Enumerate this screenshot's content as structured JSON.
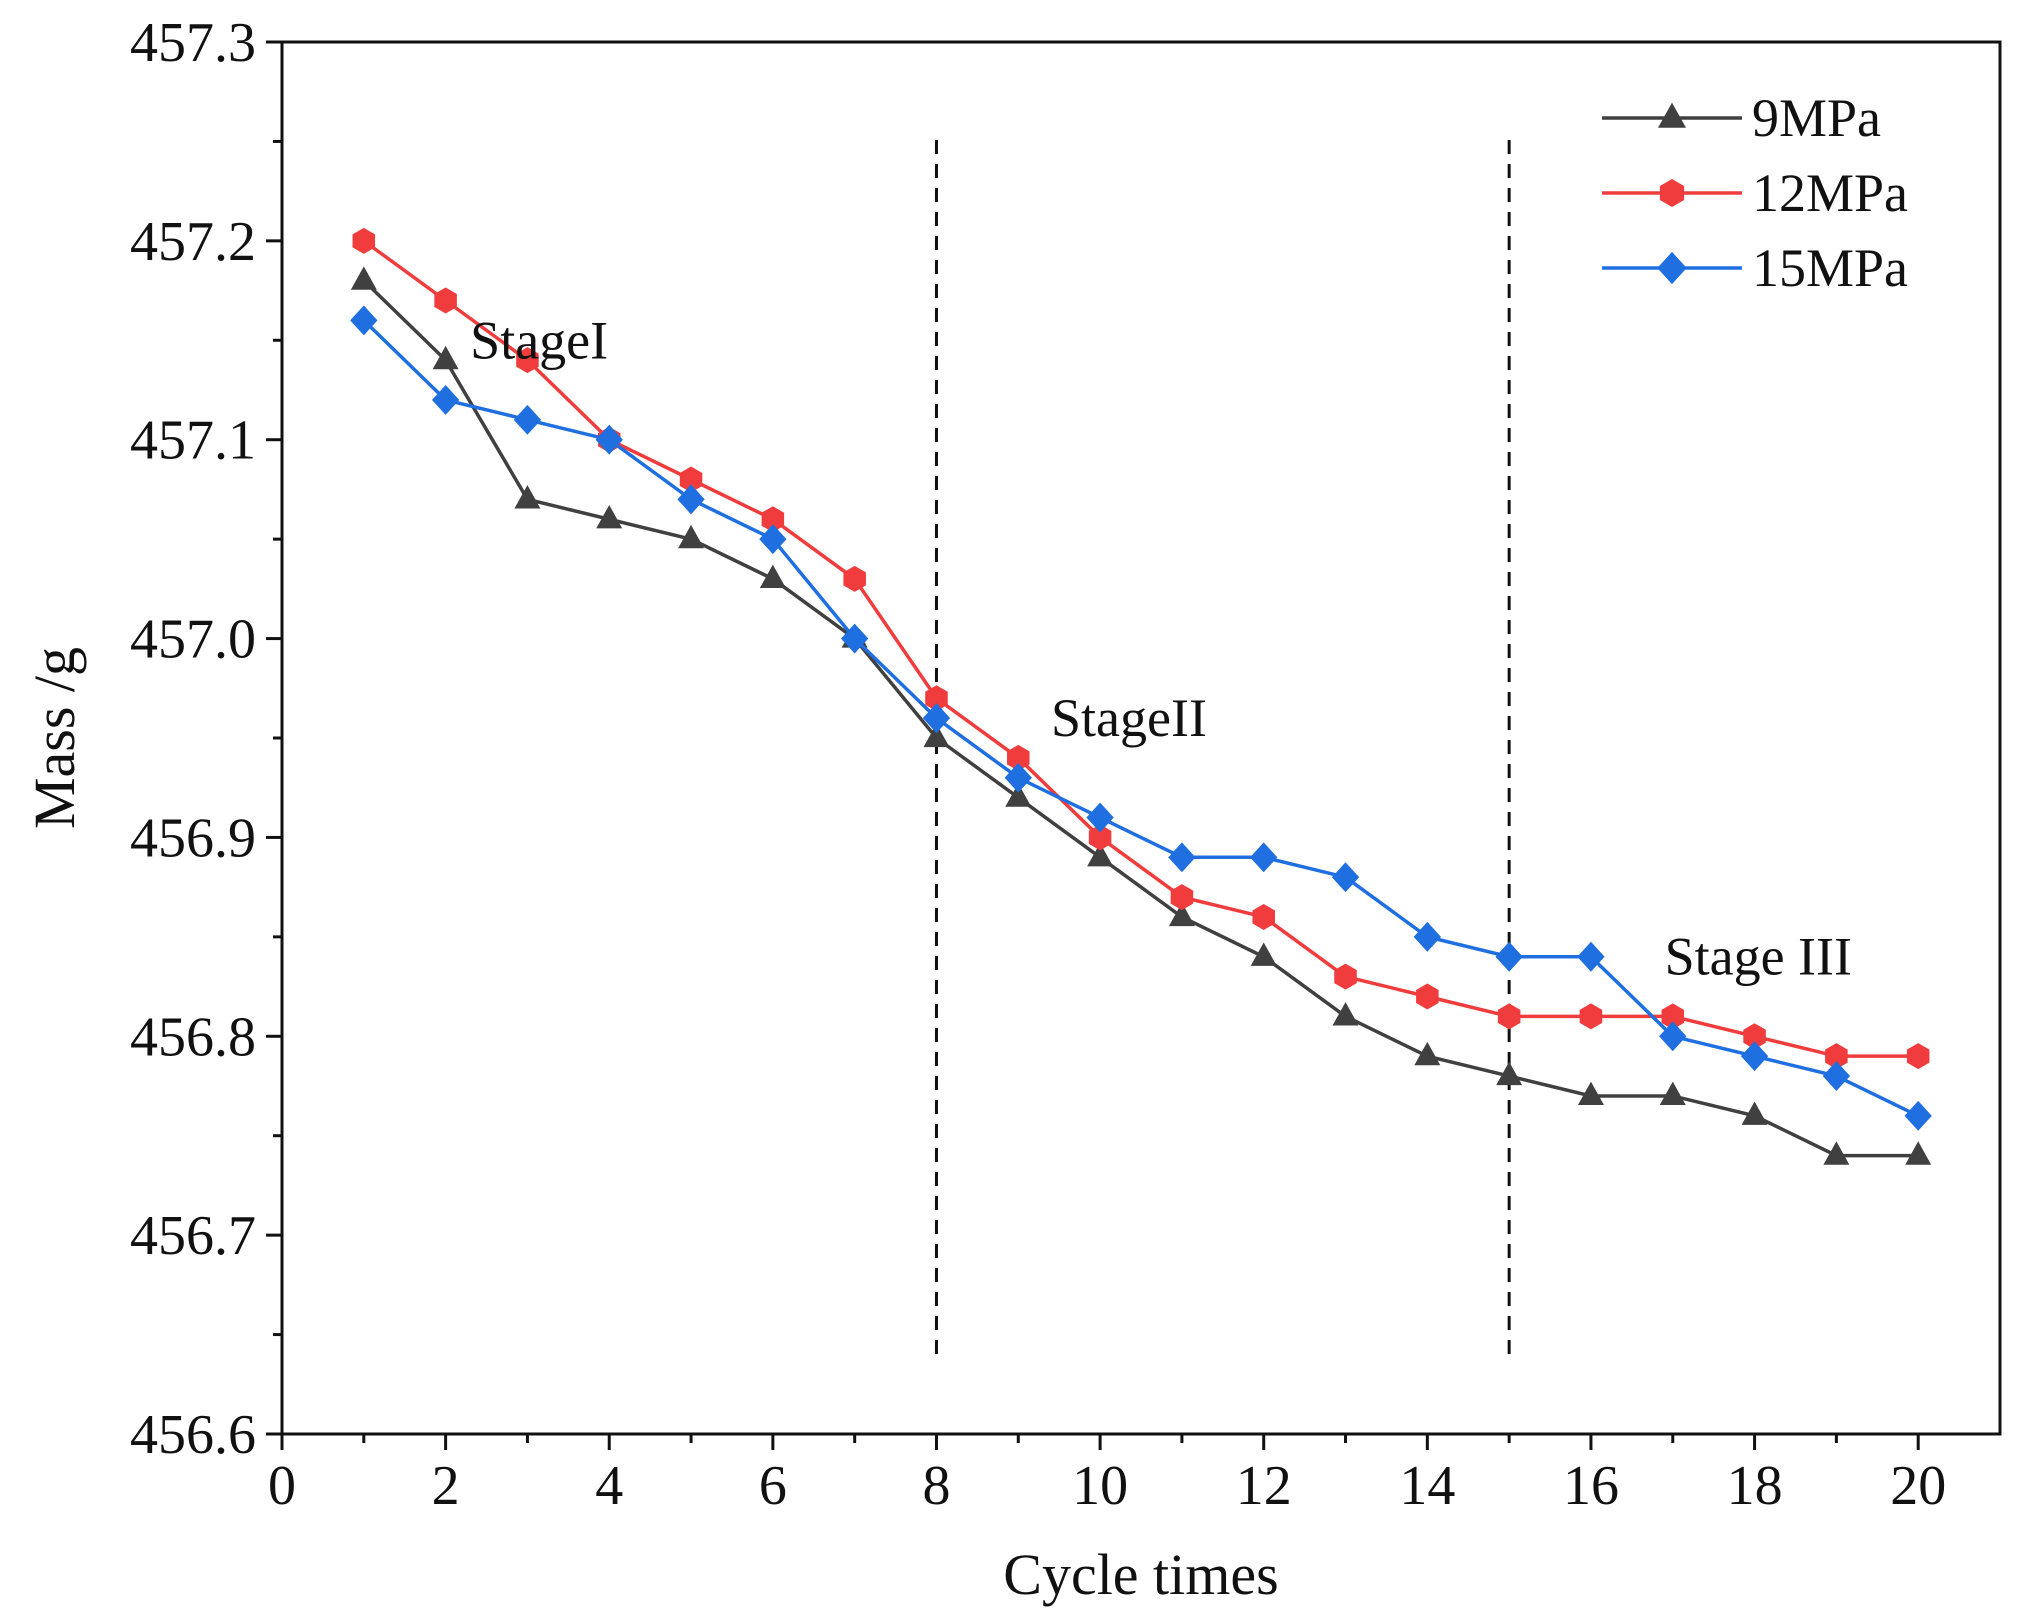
{
  "chart_data": {
    "type": "line",
    "title": "",
    "xlabel": "Cycle times",
    "ylabel": "Mass /g",
    "xlim": [
      0,
      21
    ],
    "ylim": [
      456.6,
      457.3
    ],
    "xticks": [
      0,
      2,
      4,
      6,
      8,
      10,
      12,
      14,
      16,
      18,
      20
    ],
    "yticks": [
      456.6,
      456.7,
      456.8,
      456.9,
      457.0,
      457.1,
      457.2,
      457.3
    ],
    "xtick_labels": [
      "0",
      "2",
      "4",
      "6",
      "8",
      "10",
      "12",
      "14",
      "16",
      "18",
      "20"
    ],
    "ytick_labels": [
      "456.6",
      "456.7",
      "456.8",
      "456.9",
      "457.0",
      "457.1",
      "457.2",
      "457.3"
    ],
    "grid": false,
    "legend_position": "top-right",
    "x": [
      1,
      2,
      3,
      4,
      5,
      6,
      7,
      8,
      9,
      10,
      11,
      12,
      13,
      14,
      15,
      16,
      17,
      18,
      19,
      20
    ],
    "series": [
      {
        "name": "9MPa",
        "marker": "triangle",
        "color": "#404040",
        "values": [
          457.18,
          457.14,
          457.07,
          457.06,
          457.05,
          457.03,
          457.0,
          456.95,
          456.92,
          456.89,
          456.86,
          456.84,
          456.81,
          456.79,
          456.78,
          456.77,
          456.77,
          456.76,
          456.74,
          456.74
        ]
      },
      {
        "name": "12MPa",
        "marker": "hexagon",
        "color": "#f03c3c",
        "values": [
          457.2,
          457.17,
          457.14,
          457.1,
          457.08,
          457.06,
          457.03,
          456.97,
          456.94,
          456.9,
          456.87,
          456.86,
          456.83,
          456.82,
          456.81,
          456.81,
          456.81,
          456.8,
          456.79,
          456.79
        ]
      },
      {
        "name": "15MPa",
        "marker": "diamond",
        "color": "#1f6fe0",
        "values": [
          457.16,
          457.12,
          457.11,
          457.1,
          457.07,
          457.05,
          457.0,
          456.96,
          456.93,
          456.91,
          456.89,
          456.89,
          456.88,
          456.85,
          456.84,
          456.84,
          456.8,
          456.79,
          456.78,
          456.76
        ]
      }
    ],
    "dividers": [
      8,
      15
    ],
    "annotations": [
      {
        "text": "StageI",
        "x": 2.3,
        "y": 457.15
      },
      {
        "text": "StageII",
        "x": 9.4,
        "y": 456.96
      },
      {
        "text": "Stage III",
        "x": 16.9,
        "y": 456.84
      }
    ]
  }
}
